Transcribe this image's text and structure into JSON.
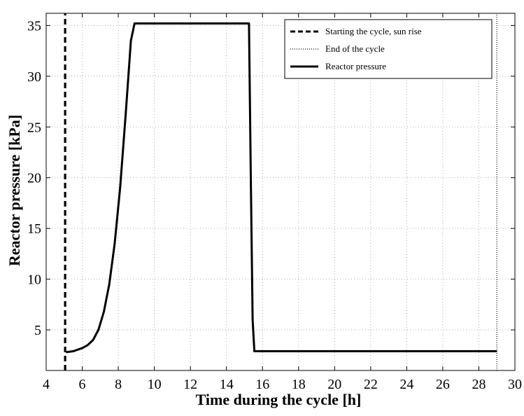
{
  "chart_data": {
    "type": "line",
    "title": "",
    "xlabel": "Time during the cycle  [h]",
    "ylabel": "Reactor pressure  [kPa]",
    "xlim": [
      4,
      30
    ],
    "ylim": [
      1,
      36.2
    ],
    "xticks": [
      4,
      6,
      8,
      10,
      12,
      14,
      16,
      18,
      20,
      22,
      24,
      26,
      28,
      30
    ],
    "yticks": [
      5,
      10,
      15,
      20,
      25,
      30,
      35
    ],
    "grid": true,
    "legend_position": "top-right",
    "series": [
      {
        "name": "Starting the cycle, sun rise",
        "style": "dashed",
        "x": [
          5.05,
          5.05
        ],
        "y": [
          1,
          36.2
        ]
      },
      {
        "name": "End of the cycle",
        "style": "dotted",
        "x": [
          29,
          29
        ],
        "y": [
          1,
          36.2
        ]
      },
      {
        "name": "Reactor pressure",
        "style": "solid",
        "x": [
          5.1,
          5.5,
          6.0,
          6.3,
          6.6,
          6.9,
          7.2,
          7.5,
          7.8,
          8.1,
          8.4,
          8.7,
          8.9,
          15.25,
          15.35,
          15.45,
          15.55,
          29.0
        ],
        "y": [
          2.8,
          2.9,
          3.2,
          3.5,
          4.0,
          5.0,
          6.8,
          9.5,
          13.5,
          19.0,
          26.0,
          33.5,
          35.2,
          35.2,
          20.0,
          6.0,
          2.9,
          2.9
        ]
      }
    ]
  }
}
